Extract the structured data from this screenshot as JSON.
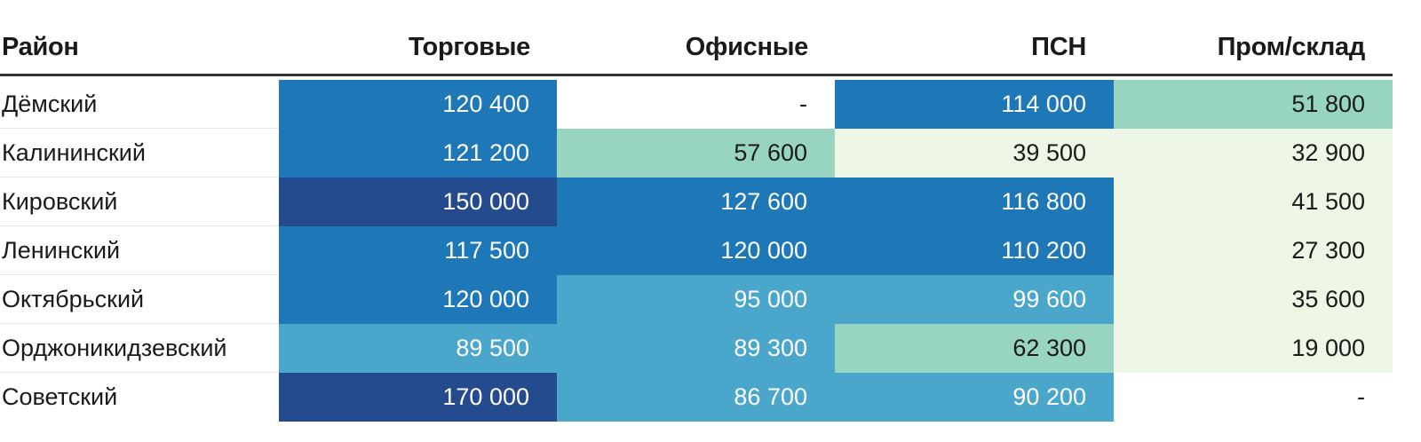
{
  "chart_data": {
    "type": "table",
    "columns": [
      "Район",
      "Торговые",
      "Офисные",
      "ПСН",
      "Пром/склад"
    ],
    "rows": [
      {
        "name": "Дёмский",
        "values": [
          "120 400",
          "-",
          "114 000",
          "51 800"
        ],
        "colors": [
          "#1e78b7",
          "#ffffff",
          "#1e78b7",
          "#97d5c0"
        ]
      },
      {
        "name": "Калининский",
        "values": [
          "121 200",
          "57 600",
          "39 500",
          "32 900"
        ],
        "colors": [
          "#1e78b7",
          "#97d5c0",
          "#eef7e6",
          "#eef7e6"
        ]
      },
      {
        "name": "Кировский",
        "values": [
          "150 000",
          "127 600",
          "116 800",
          "41 500"
        ],
        "colors": [
          "#234b8d",
          "#1e78b7",
          "#1e78b7",
          "#eef7e6"
        ]
      },
      {
        "name": "Ленинский",
        "values": [
          "117 500",
          "120 000",
          "110 200",
          "27 300"
        ],
        "colors": [
          "#1e78b7",
          "#1e78b7",
          "#1e78b7",
          "#eef7e6"
        ]
      },
      {
        "name": "Октябрьский",
        "values": [
          "120 000",
          "95 000",
          "99 600",
          "35 600"
        ],
        "colors": [
          "#1e78b7",
          "#4aa7cb",
          "#4aa7cb",
          "#eef7e6"
        ]
      },
      {
        "name": "Орджоникидзевский",
        "values": [
          "89 500",
          "89 300",
          "62 300",
          "19 000"
        ],
        "colors": [
          "#4aa7cb",
          "#4aa7cb",
          "#97d5c0",
          "#eef7e6"
        ]
      },
      {
        "name": "Советский",
        "values": [
          "170 000",
          "86 700",
          "90 200",
          "-"
        ],
        "colors": [
          "#234b8d",
          "#4aa7cb",
          "#4aa7cb",
          "#ffffff"
        ]
      }
    ],
    "text_colors": {
      "#1e78b7": "#ffffff",
      "#234b8d": "#ffffff",
      "#4aa7cb": "#ffffff",
      "#97d5c0": "#1a1a1a",
      "#eef7e6": "#1a1a1a",
      "#ffffff": "#1a1a1a"
    }
  }
}
